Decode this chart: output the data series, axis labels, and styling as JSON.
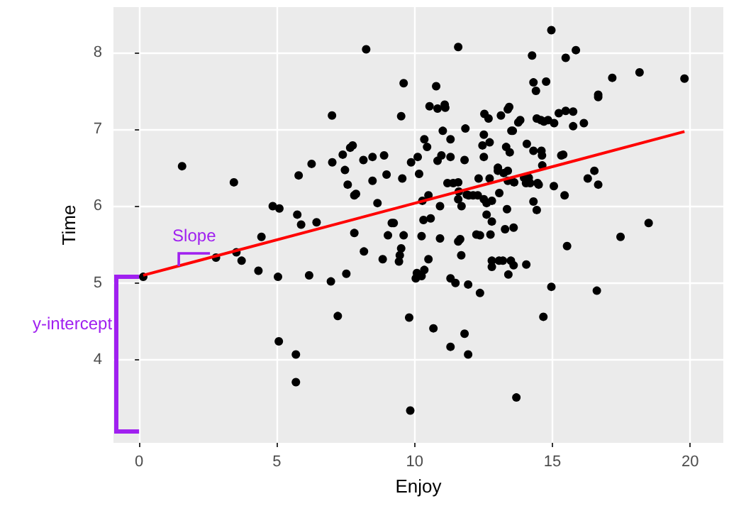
{
  "chart_data": {
    "type": "scatter",
    "xlabel": "Enjoy",
    "ylabel": "Time",
    "xlim": [
      -0.93,
      21.2
    ],
    "ylim": [
      2.92,
      8.59
    ],
    "xticks": [
      0,
      5,
      10,
      15,
      20
    ],
    "yticks": [
      4,
      5,
      6,
      7,
      8
    ],
    "grid": true,
    "annotations": [
      {
        "text": "Slope",
        "x": 1.44,
        "y": 5.22
      },
      {
        "text": "y-intercept",
        "x": 0,
        "y": 5.08
      }
    ],
    "series": [
      {
        "marker": "circle",
        "color": "#000000",
        "x": [
          8.24,
          9.6,
          7.0,
          9.51,
          1.56,
          3.44,
          7.75,
          7.66,
          7.39,
          8.47,
          8.89,
          8.14,
          7.01,
          6.26,
          10.11,
          9.87,
          7.47,
          5.79,
          8.98,
          10.16,
          7.57,
          8.47,
          9.55,
          7.87,
          7.81,
          8.65,
          10.28,
          4.85,
          5.09,
          5.74,
          5.88,
          6.44,
          9.17,
          9.24,
          4.44,
          3.53,
          2.79,
          3.72,
          4.33,
          5.04,
          6.17,
          6.96,
          7.52,
          7.81,
          8.16,
          8.84,
          9.03,
          9.6,
          9.51,
          9.46,
          9.43,
          0.15,
          7.21,
          9.8,
          5.07,
          5.69,
          5.69,
          9.84,
          10.32,
          10.58,
          12.61,
          12.8,
          18.49,
          10.25,
          10.92,
          11.58,
          11.65,
          12.24,
          12.37,
          12.75,
          13.28,
          13.59,
          17.47,
          15.53,
          10.5,
          11.69,
          10.08,
          10.04,
          10.25,
          10.35,
          12.8,
          13.06,
          13.2,
          13.49,
          12.8,
          13.59,
          14.05,
          13.4,
          11.3,
          11.48,
          11.94,
          12.37,
          14.96,
          16.61,
          14.67,
          10.68,
          11.81,
          11.3,
          11.94,
          13.69,
          14.96,
          11.58,
          15.85,
          14.26,
          15.48,
          17.17,
          18.16,
          19.79,
          14.31,
          14.4,
          14.77,
          16.66,
          16.66,
          10.78,
          10.54,
          10.83,
          11.09,
          11.11,
          13.43,
          13.38,
          12.53,
          12.68,
          13.13,
          13.76,
          13.83,
          14.43,
          14.58,
          14.69,
          14.84,
          15.06,
          15.23,
          15.48,
          15.75,
          15.75,
          16.14,
          13.51,
          13.56,
          11.02,
          11.84,
          12.51,
          10.35,
          11.3,
          10.45,
          12.72,
          12.46,
          14.07,
          13.32,
          13.45,
          14.31,
          14.6,
          14.62,
          15.32,
          15.39,
          10.97,
          10.83,
          11.3,
          11.81,
          12.51,
          14.63,
          13.02,
          13.02,
          13.23,
          13.38,
          12.32,
          12.72,
          13.38,
          13.61,
          13.97,
          14.14,
          14.04,
          14.19,
          14.46,
          14.5,
          16.52,
          16.28,
          16.66,
          15.05,
          11.19,
          11.4,
          11.58,
          13.07,
          15.44,
          11.6,
          11.89,
          11.96,
          12.12,
          12.29,
          10.5,
          11.58,
          11.7,
          12.51,
          12.61,
          12.8,
          10.92,
          13.35,
          14.31,
          14.43
        ],
        "values": [
          8.04,
          7.6,
          7.18,
          7.17,
          6.52,
          6.31,
          6.79,
          6.76,
          6.67,
          6.64,
          6.66,
          6.6,
          6.57,
          6.55,
          6.64,
          6.57,
          6.47,
          6.4,
          6.41,
          6.42,
          6.28,
          6.33,
          6.36,
          6.16,
          6.14,
          6.04,
          6.07,
          6.0,
          5.97,
          5.89,
          5.76,
          5.79,
          5.78,
          5.78,
          5.6,
          5.4,
          5.33,
          5.29,
          5.16,
          5.08,
          5.1,
          5.02,
          5.12,
          5.65,
          5.41,
          5.31,
          5.62,
          5.62,
          5.45,
          5.36,
          5.28,
          5.08,
          4.57,
          4.55,
          4.24,
          4.07,
          3.71,
          3.34,
          5.82,
          5.84,
          5.89,
          5.8,
          5.78,
          5.61,
          5.58,
          5.54,
          5.57,
          5.63,
          5.62,
          5.63,
          5.7,
          5.72,
          5.6,
          5.48,
          5.31,
          5.36,
          5.13,
          5.06,
          5.09,
          5.17,
          5.29,
          5.29,
          5.29,
          5.29,
          5.21,
          5.23,
          5.24,
          5.11,
          5.06,
          5.0,
          4.98,
          4.87,
          4.95,
          4.9,
          4.56,
          4.41,
          4.34,
          4.17,
          4.07,
          3.51,
          8.29,
          8.07,
          8.03,
          7.96,
          7.93,
          7.67,
          7.74,
          7.66,
          7.61,
          7.5,
          7.62,
          7.45,
          7.42,
          7.56,
          7.3,
          7.27,
          7.32,
          7.28,
          7.29,
          7.26,
          7.2,
          7.14,
          7.18,
          7.09,
          7.12,
          7.14,
          7.12,
          7.1,
          7.12,
          7.08,
          7.21,
          7.24,
          7.23,
          7.04,
          7.08,
          6.98,
          6.98,
          6.98,
          7.01,
          6.93,
          6.87,
          6.87,
          6.77,
          6.83,
          6.79,
          6.81,
          6.77,
          6.7,
          6.72,
          6.72,
          6.66,
          6.66,
          6.67,
          6.66,
          6.59,
          6.64,
          6.6,
          6.64,
          6.53,
          6.5,
          6.46,
          6.43,
          6.46,
          6.36,
          6.36,
          6.33,
          6.31,
          6.37,
          6.37,
          6.3,
          6.3,
          6.3,
          6.28,
          6.46,
          6.36,
          6.28,
          6.26,
          6.3,
          6.3,
          6.31,
          6.17,
          6.14,
          6.19,
          6.15,
          6.14,
          6.14,
          6.14,
          6.14,
          6.09,
          6.0,
          6.09,
          6.04,
          6.07,
          6.0,
          5.96,
          6.06,
          5.95
        ]
      },
      {
        "type": "line",
        "color": "#ff0000",
        "x": [
          0.15,
          19.79
        ],
        "values": [
          5.1,
          6.97
        ]
      }
    ]
  }
}
